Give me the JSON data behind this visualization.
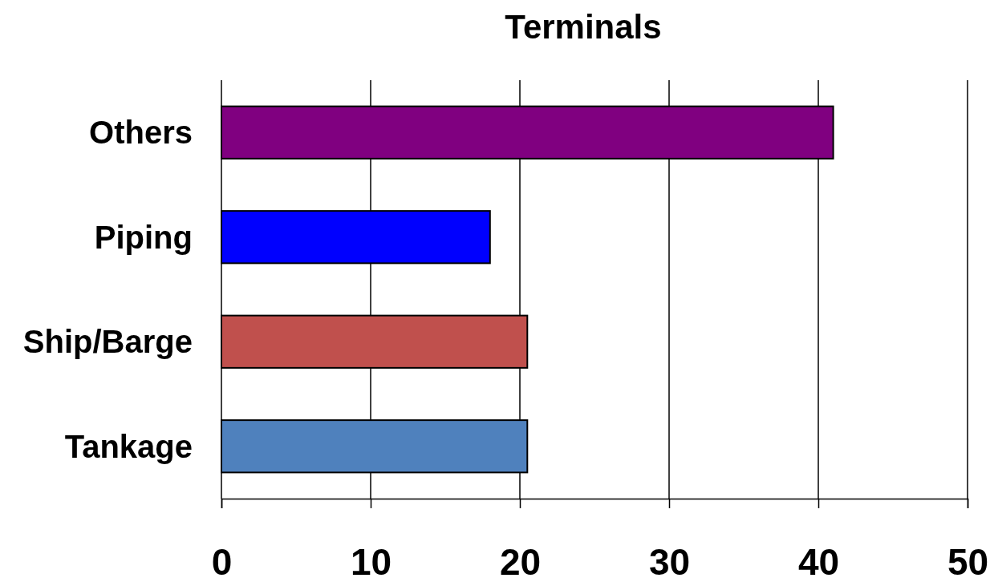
{
  "chart_data": {
    "type": "bar",
    "title": "Terminals",
    "orientation": "horizontal",
    "categories": [
      "Others",
      "Piping",
      "Ship/Barge",
      "Tankage"
    ],
    "values": [
      41,
      18,
      20.5,
      20.5
    ],
    "colors": [
      "#800080",
      "#0000ff",
      "#c0504d",
      "#4f81bd"
    ],
    "xlim": [
      0,
      50
    ],
    "xticks": [
      0,
      10,
      20,
      30,
      40,
      50
    ],
    "grid": "x"
  }
}
